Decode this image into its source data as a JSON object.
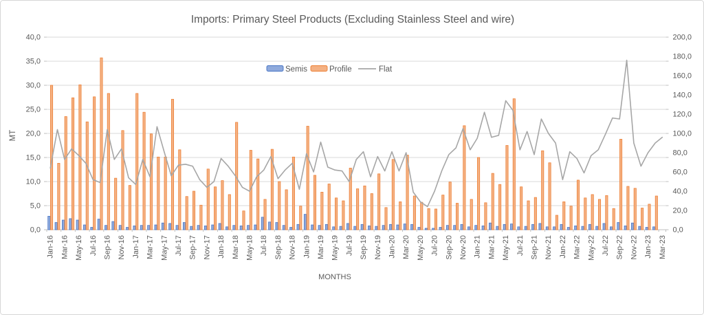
{
  "title": "Imports: Primary Steel Products (Excluding Stainless Steel and wire)",
  "x_axis_title": "MONTHS",
  "y_axis_title": "MT",
  "colors": {
    "semis_fill": "#8faadc",
    "semis_border": "#4472c4",
    "profile_fill": "#f4b183",
    "profile_border": "#ed7d31",
    "flat_line": "#a6a6a6",
    "gridline": "#d9d9d9",
    "axis": "#bfbfbf",
    "text": "#595959",
    "background": "#ffffff",
    "frame": "#d6d6d6"
  },
  "legend": {
    "items": [
      "Semis",
      "Profile",
      "Flat"
    ]
  },
  "chart_data": {
    "type": "bar",
    "subtype": "combo bar+line, dual axis",
    "grid": "horizontal on",
    "legend_position": "inside-top",
    "title": "Imports: Primary Steel Products (Excluding Stainless Steel and wire)",
    "xlabel": "MONTHS",
    "ylabel_left": "MT",
    "left_axis": {
      "min": 0,
      "max": 40,
      "step": 5,
      "tick_labels": [
        "0,0",
        "5,0",
        "10,0",
        "15,0",
        "20,0",
        "25,0",
        "30,0",
        "35,0",
        "40,0"
      ]
    },
    "right_axis": {
      "min": 0,
      "max": 200,
      "step": 20,
      "tick_labels": [
        "0,0",
        "20,0",
        "40,0",
        "60,0",
        "80,0",
        "100,0",
        "120,0",
        "140,0",
        "160,0",
        "180,0",
        "200,0"
      ]
    },
    "x_tick_labels": [
      "Jan-16",
      "Mar-16",
      "May-16",
      "Jul-16",
      "Sep-16",
      "Nov-16",
      "Jan-17",
      "Mar-17",
      "May-17",
      "Jul-17",
      "Sep-17",
      "Nov-17",
      "Jan-18",
      "Mar-18",
      "May-18",
      "Jul-18",
      "Sep-18",
      "Nov-18",
      "Jan-19",
      "Mar-19",
      "May-19",
      "Jul-19",
      "Sep-19",
      "Nov-19",
      "Jan-20",
      "Mar-20",
      "May-20",
      "Jul-20",
      "Sep-20",
      "Nov-20",
      "Jan-21",
      "Mar-21",
      "May-21",
      "Jul-21",
      "Sep-21",
      "Nov-21",
      "Jan-22",
      "Mar-22",
      "May-22",
      "Jul-22",
      "Sep-22",
      "Nov-22",
      "Jan-23",
      "Mar-23"
    ],
    "categories": [
      "Jan-16",
      "Feb-16",
      "Mar-16",
      "Apr-16",
      "May-16",
      "Jun-16",
      "Jul-16",
      "Aug-16",
      "Sep-16",
      "Oct-16",
      "Nov-16",
      "Dec-16",
      "Jan-17",
      "Feb-17",
      "Mar-17",
      "Apr-17",
      "May-17",
      "Jun-17",
      "Jul-17",
      "Aug-17",
      "Sep-17",
      "Oct-17",
      "Nov-17",
      "Dec-17",
      "Jan-18",
      "Feb-18",
      "Mar-18",
      "Apr-18",
      "May-18",
      "Jun-18",
      "Jul-18",
      "Aug-18",
      "Sep-18",
      "Oct-18",
      "Nov-18",
      "Dec-18",
      "Jan-19",
      "Feb-19",
      "Mar-19",
      "Apr-19",
      "May-19",
      "Jun-19",
      "Jul-19",
      "Aug-19",
      "Sep-19",
      "Oct-19",
      "Nov-19",
      "Dec-19",
      "Jan-20",
      "Feb-20",
      "Mar-20",
      "Apr-20",
      "May-20",
      "Jun-20",
      "Jul-20",
      "Aug-20",
      "Sep-20",
      "Oct-20",
      "Nov-20",
      "Dec-20",
      "Jan-21",
      "Feb-21",
      "Mar-21",
      "Apr-21",
      "May-21",
      "Jun-21",
      "Jul-21",
      "Aug-21",
      "Sep-21",
      "Oct-21",
      "Nov-21",
      "Dec-21",
      "Jan-22",
      "Feb-22",
      "Mar-22",
      "Apr-22",
      "May-22",
      "Jun-22",
      "Jul-22",
      "Aug-22",
      "Sep-22",
      "Oct-22",
      "Nov-22",
      "Dec-22",
      "Jan-23",
      "Feb-23",
      "Mar-23"
    ],
    "series": [
      {
        "name": "Semis",
        "type": "bar",
        "axis": "left",
        "values": [
          2.8,
          1.5,
          2.0,
          2.3,
          2.0,
          1.0,
          0.5,
          2.2,
          0.9,
          1.7,
          0.9,
          0.5,
          0.8,
          0.9,
          0.9,
          1.0,
          1.4,
          1.3,
          0.9,
          1.5,
          0.7,
          0.9,
          0.8,
          1.0,
          1.3,
          0.6,
          0.9,
          0.8,
          0.9,
          1.0,
          2.6,
          1.6,
          1.5,
          0.9,
          0.5,
          1.1,
          3.2,
          1.0,
          0.9,
          1.1,
          0.6,
          0.7,
          1.3,
          0.7,
          1.1,
          0.8,
          0.7,
          0.9,
          1.1,
          1.0,
          1.2,
          1.1,
          0.5,
          0.3,
          0.3,
          0.5,
          0.9,
          0.9,
          1.1,
          0.6,
          0.9,
          0.8,
          1.4,
          0.7,
          1.1,
          1.2,
          0.6,
          0.7,
          1.1,
          1.3,
          0.6,
          0.6,
          1.1,
          0.5,
          0.8,
          0.7,
          1.1,
          0.7,
          1.3,
          0.6,
          1.5,
          0.8,
          1.4,
          0.7,
          0.5,
          0.6,
          null
        ]
      },
      {
        "name": "Profile",
        "type": "bar",
        "axis": "left",
        "values": [
          30.0,
          13.8,
          23.5,
          27.4,
          30.1,
          22.4,
          27.6,
          35.7,
          28.3,
          10.7,
          20.6,
          9.2,
          28.3,
          24.4,
          19.9,
          15.1,
          15.1,
          27.1,
          16.6,
          6.9,
          8.0,
          5.1,
          12.6,
          8.9,
          10.2,
          7.3,
          22.3,
          3.9,
          16.5,
          14.7,
          6.3,
          16.7,
          10.0,
          8.3,
          15.1,
          4.9,
          21.5,
          11.3,
          7.8,
          9.5,
          6.6,
          6.0,
          12.8,
          8.5,
          9.1,
          7.5,
          11.6,
          4.6,
          14.6,
          5.8,
          15.5,
          7.0,
          5.7,
          4.4,
          4.3,
          7.2,
          9.9,
          5.5,
          21.6,
          6.3,
          15.0,
          5.6,
          11.7,
          9.4,
          17.5,
          27.2,
          8.9,
          6.0,
          6.7,
          16.4,
          13.9,
          3.0,
          5.8,
          4.9,
          10.3,
          6.6,
          7.3,
          6.3,
          7.1,
          4.4,
          18.8,
          9.0,
          8.6,
          4.5,
          5.3,
          7.0,
          null
        ]
      },
      {
        "name": "Flat",
        "type": "line",
        "axis": "right",
        "values": [
          64,
          104,
          73,
          84,
          77,
          69,
          52,
          49,
          104,
          73,
          84,
          54,
          47,
          73,
          55,
          107,
          81,
          56,
          67,
          68,
          66,
          52,
          44,
          50,
          74,
          66,
          56,
          44,
          40,
          55,
          62,
          76,
          53,
          62,
          69,
          42,
          79,
          60,
          91,
          65,
          62,
          61,
          50,
          73,
          81,
          55,
          76,
          61,
          81,
          61,
          80,
          39,
          29,
          24,
          40,
          61,
          78,
          85,
          105,
          83,
          95,
          122,
          96,
          98,
          134,
          124,
          83,
          102,
          78,
          115,
          100,
          90,
          52,
          81,
          74,
          59,
          77,
          83,
          99,
          116,
          115,
          176,
          90,
          66,
          80,
          90,
          96
        ]
      }
    ]
  }
}
